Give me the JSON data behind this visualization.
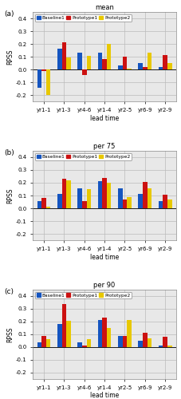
{
  "panels": [
    {
      "label": "(a)",
      "title": "mean",
      "xlabel": "lead time",
      "ylabel": "RPSS",
      "categories": [
        "yr1-1",
        "yr1-3",
        "yr4-6",
        "yr1-4",
        "yr2-5",
        "yr6-9",
        "yr2-9"
      ],
      "baseline1": [
        -0.14,
        0.16,
        0.13,
        0.13,
        0.03,
        0.05,
        0.02
      ],
      "prototype1": [
        -0.01,
        0.21,
        -0.04,
        0.08,
        0.1,
        0.02,
        0.11
      ],
      "prototype2": [
        -0.2,
        0.095,
        0.105,
        0.2,
        0.01,
        0.13,
        0.05
      ],
      "ylim": [
        -0.25,
        0.45
      ]
    },
    {
      "label": "(b)",
      "title": "per 75",
      "xlabel": "lead time",
      "ylabel": "RPSS",
      "categories": [
        "yr1-1",
        "yr1-3",
        "yr4-6",
        "yr1-4",
        "yr2-5",
        "yr6-9",
        "yr2-9"
      ],
      "baseline1": [
        0.055,
        0.11,
        0.155,
        0.21,
        0.155,
        0.115,
        0.055
      ],
      "prototype1": [
        0.08,
        0.23,
        0.055,
        0.235,
        0.07,
        0.205,
        0.105
      ],
      "prototype2": [
        0.01,
        0.22,
        0.15,
        0.2,
        0.09,
        0.155,
        0.07
      ],
      "ylim": [
        -0.25,
        0.45
      ]
    },
    {
      "label": "(c)",
      "title": "per 90",
      "xlabel": "lead time",
      "ylabel": "RPSS",
      "categories": [
        "yr1-1",
        "yr1-3",
        "yr4-6",
        "yr1-4",
        "yr2-5",
        "yr6-9",
        "yr2-9"
      ],
      "baseline1": [
        0.04,
        0.18,
        0.04,
        0.21,
        0.09,
        0.05,
        0.01
      ],
      "prototype1": [
        0.09,
        0.335,
        0.01,
        0.23,
        0.085,
        0.11,
        0.08
      ],
      "prototype2": [
        0.06,
        0.205,
        0.06,
        0.15,
        0.21,
        0.07,
        0.01
      ],
      "ylim": [
        -0.25,
        0.45
      ]
    }
  ],
  "colors": {
    "baseline1": "#1555c0",
    "prototype1": "#cc1111",
    "prototype2": "#e8c800"
  },
  "legend_labels": [
    "Baseline1",
    "Prototype1",
    "Prototype2"
  ],
  "bar_width": 0.22,
  "grid_color": "#bbbbbb",
  "bg_color": "#e8e8e8",
  "yticks": [
    -0.2,
    -0.1,
    0.0,
    0.1,
    0.2,
    0.3,
    0.4
  ]
}
